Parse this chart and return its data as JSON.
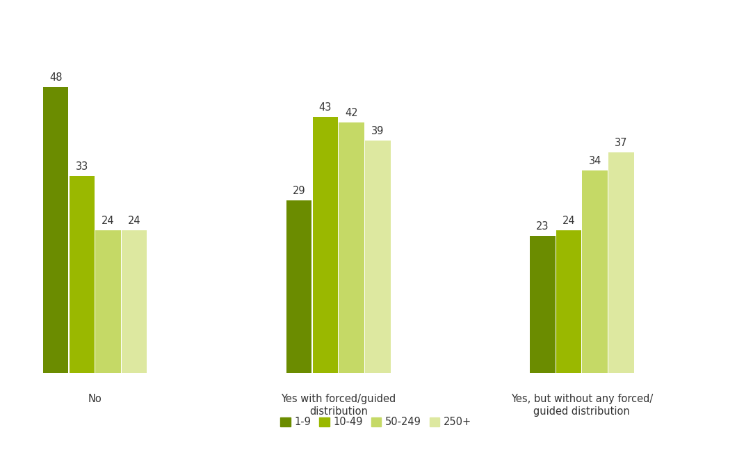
{
  "groups": [
    "No",
    "Yes with forced/guided\ndistribution",
    "Yes, but without any forced/\nguided distribution"
  ],
  "series": [
    "1-9",
    "10-49",
    "50-249",
    "250+"
  ],
  "colors": [
    "#6b8c00",
    "#9ab800",
    "#c5d966",
    "#dde8a0"
  ],
  "values": [
    [
      48,
      33,
      24,
      24
    ],
    [
      29,
      43,
      42,
      39
    ],
    [
      23,
      24,
      34,
      37
    ]
  ],
  "background_color": "#ffffff",
  "label_fontsize": 10.5,
  "legend_fontsize": 10.5,
  "value_label_fontsize": 10.5,
  "ylim": [
    0,
    58
  ],
  "group_positions": [
    1.1,
    3.7,
    6.3
  ],
  "bar_width": 0.28,
  "xlim": [
    0.4,
    7.8
  ]
}
